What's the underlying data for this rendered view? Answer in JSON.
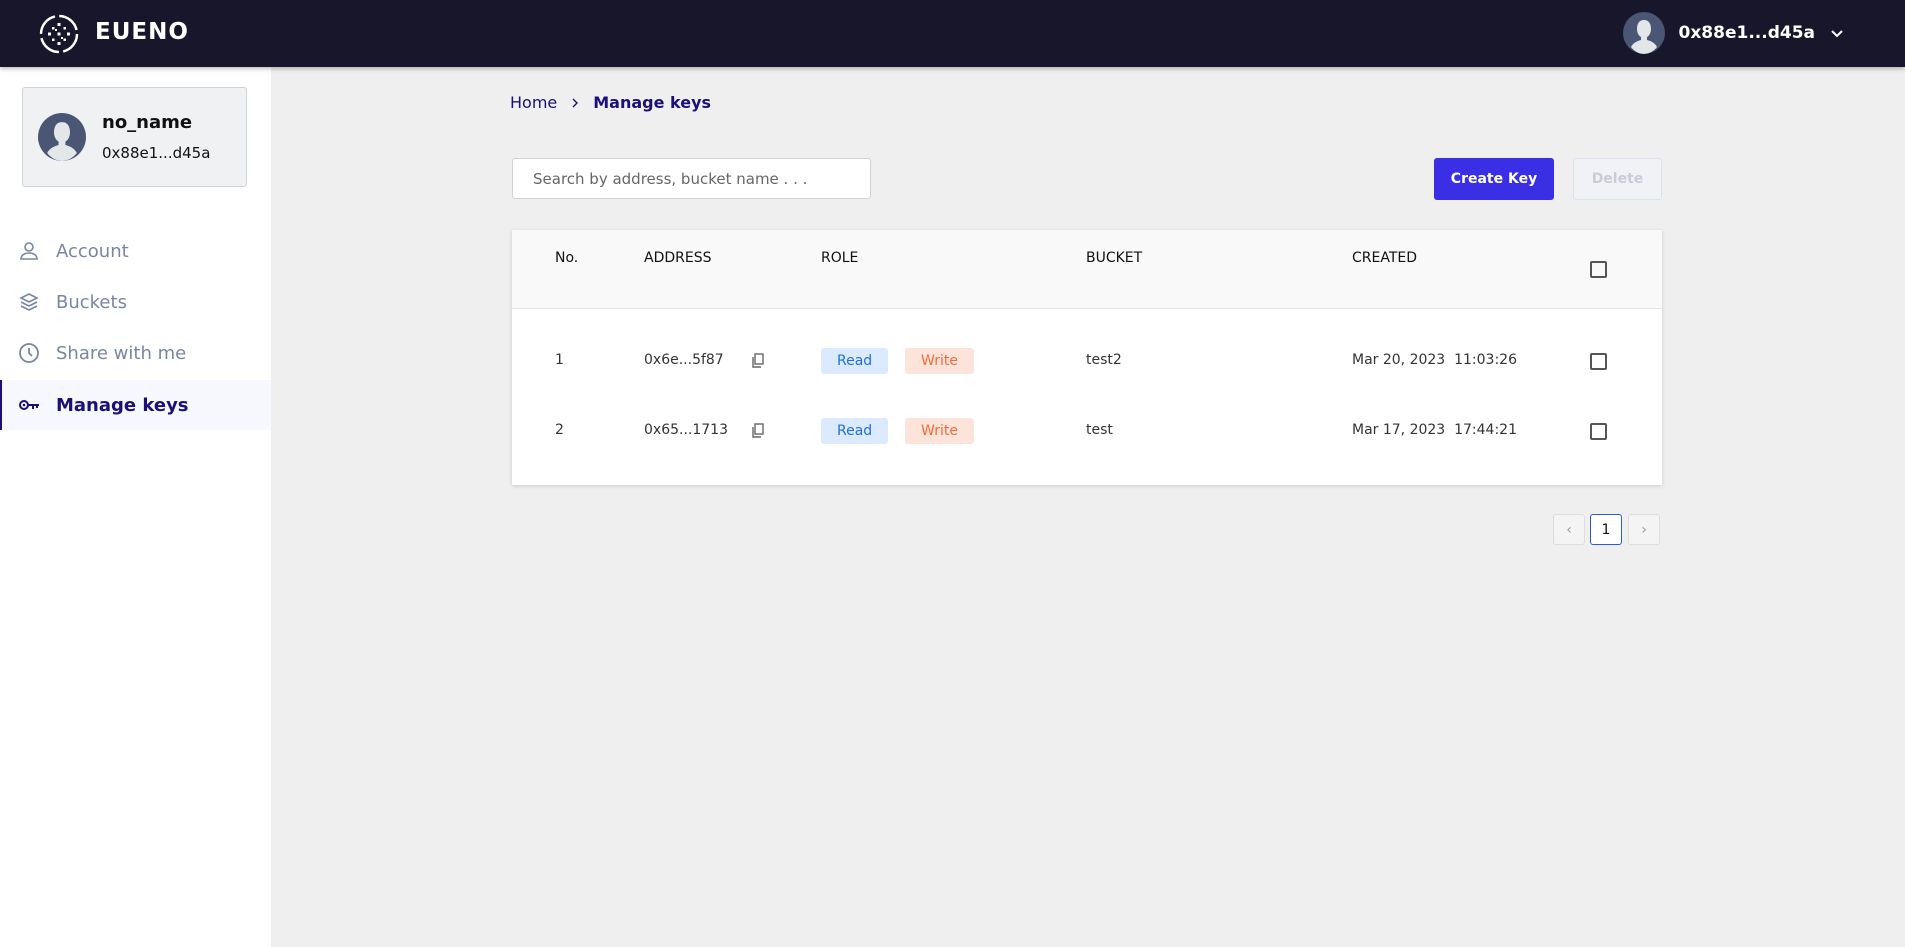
{
  "header": {
    "brand": "EUENO",
    "user_address": "0x88e1...d45a"
  },
  "sidebar": {
    "profile": {
      "name": "no_name",
      "address": "0x88e1...d45a"
    },
    "items": [
      {
        "label": "Account",
        "icon": "user-icon",
        "active": false
      },
      {
        "label": "Buckets",
        "icon": "layers-icon",
        "active": false
      },
      {
        "label": "Share with me",
        "icon": "clock-icon",
        "active": false
      },
      {
        "label": "Manage keys",
        "icon": "key-icon",
        "active": true
      }
    ]
  },
  "breadcrumb": {
    "home": "Home",
    "current": "Manage keys"
  },
  "search": {
    "placeholder": "Search by address, bucket name . . .",
    "value": ""
  },
  "toolbar": {
    "create_label": "Create Key",
    "delete_label": "Delete"
  },
  "table": {
    "columns": [
      "No.",
      "ADDRESS",
      "ROLE",
      "BUCKET",
      "CREATED"
    ],
    "rows": [
      {
        "no": "1",
        "address": "0x6e...5f87",
        "roles": [
          "Read",
          "Write"
        ],
        "bucket": "test2",
        "created": "Mar 20, 2023  11:03:26",
        "checked": false
      },
      {
        "no": "2",
        "address": "0x65...1713",
        "roles": [
          "Read",
          "Write"
        ],
        "bucket": "test",
        "created": "Mar 17, 2023  17:44:21",
        "checked": false
      }
    ]
  },
  "pagination": {
    "prev": "‹",
    "current": "1",
    "next": "›"
  },
  "colors": {
    "topbar": "#18162b",
    "primary": "#3b2fe6",
    "active_nav": "#1b0f7a",
    "read": "#1f6fe0",
    "write": "#f26b3a"
  }
}
